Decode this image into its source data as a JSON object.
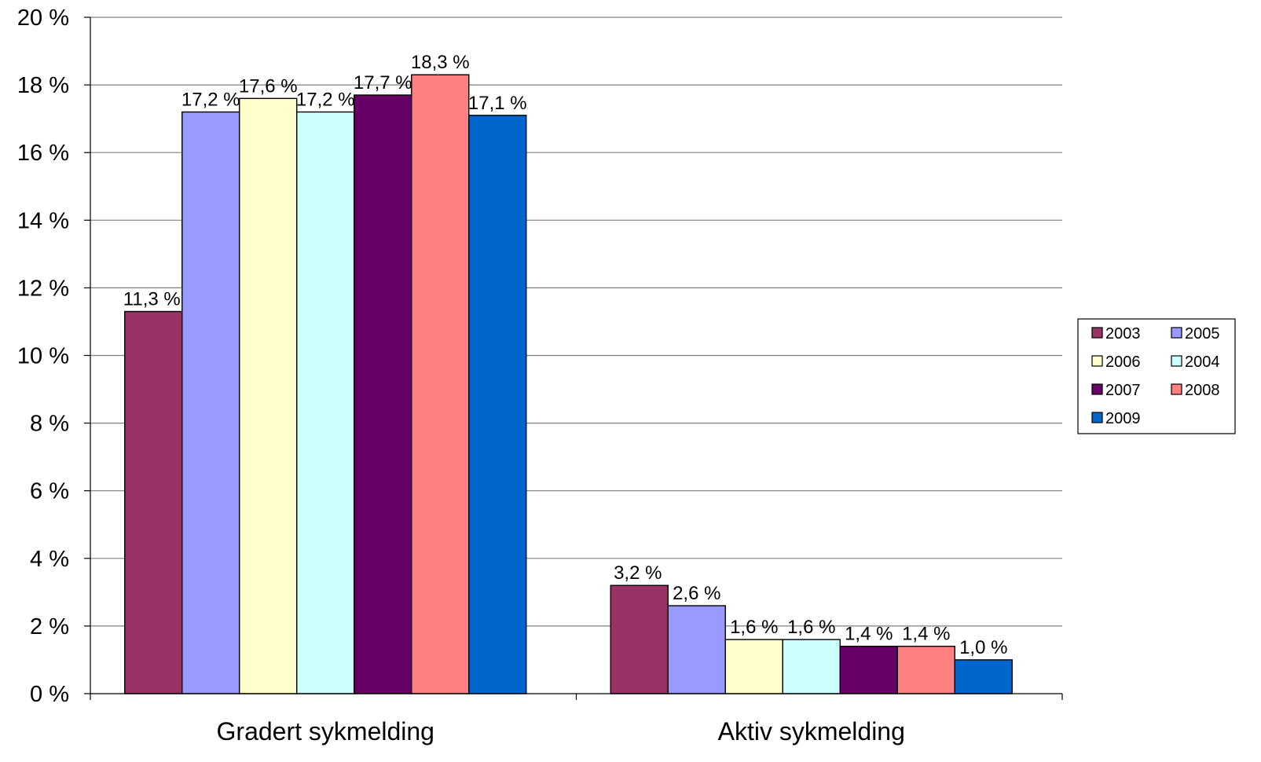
{
  "chart_data": {
    "type": "bar",
    "title": "",
    "xlabel": "",
    "ylabel": "",
    "ylim": [
      0,
      20
    ],
    "ytick_step": 2,
    "ytick_labels": [
      "0 %",
      "2 %",
      "4 %",
      "6 %",
      "8 %",
      "10 %",
      "12 %",
      "14 %",
      "16 %",
      "18 %",
      "20 %"
    ],
    "grid": true,
    "legend_position": "right",
    "categories": [
      "Gradert sykmelding",
      "Aktiv sykmelding"
    ],
    "series": [
      {
        "name": "2003",
        "color": "#993366",
        "values": [
          11.3,
          3.2
        ],
        "labels": [
          "11,3 %",
          "3,2 %"
        ]
      },
      {
        "name": "2005",
        "color": "#9999ff",
        "values": [
          17.2,
          2.6
        ],
        "labels": [
          "17,2 %",
          "2,6 %"
        ]
      },
      {
        "name": "2006",
        "color": "#ffffcc",
        "values": [
          17.6,
          1.6
        ],
        "labels": [
          "17,6 %",
          "1,6 %"
        ]
      },
      {
        "name": "2004",
        "color": "#ccffff",
        "values": [
          17.2,
          1.6
        ],
        "labels": [
          "17,2 %",
          "1,6 %"
        ]
      },
      {
        "name": "2007",
        "color": "#660066",
        "values": [
          17.7,
          1.4
        ],
        "labels": [
          "17,7 %",
          "1,4 %"
        ]
      },
      {
        "name": "2008",
        "color": "#ff8080",
        "values": [
          18.3,
          1.4
        ],
        "labels": [
          "18,3 %",
          "1,4 %"
        ]
      },
      {
        "name": "2009",
        "color": "#0066cc",
        "values": [
          17.1,
          1.0
        ],
        "labels": [
          "17,1 %",
          "1,0 %"
        ]
      }
    ]
  }
}
